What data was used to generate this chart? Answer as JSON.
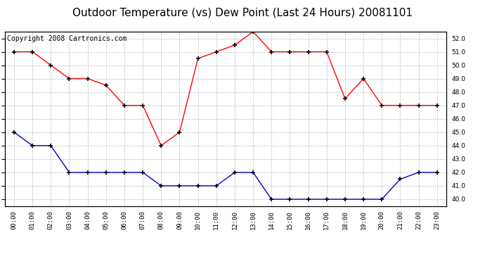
{
  "title": "Outdoor Temperature (vs) Dew Point (Last 24 Hours) 20081101",
  "copyright_text": "Copyright 2008 Cartronics.com",
  "hours": [
    "00:00",
    "01:00",
    "02:00",
    "03:00",
    "04:00",
    "05:00",
    "06:00",
    "07:00",
    "08:00",
    "09:00",
    "10:00",
    "11:00",
    "12:00",
    "13:00",
    "14:00",
    "15:00",
    "16:00",
    "17:00",
    "18:00",
    "19:00",
    "20:00",
    "21:00",
    "22:00",
    "23:00"
  ],
  "red_data": [
    51.0,
    51.0,
    50.0,
    49.0,
    49.0,
    48.5,
    47.0,
    47.0,
    44.0,
    45.0,
    50.5,
    51.0,
    51.5,
    52.5,
    51.0,
    51.0,
    51.0,
    51.0,
    47.5,
    49.0,
    47.0,
    47.0,
    47.0,
    47.0
  ],
  "blue_data": [
    45.0,
    44.0,
    44.0,
    42.0,
    42.0,
    42.0,
    42.0,
    42.0,
    41.0,
    41.0,
    41.0,
    41.0,
    42.0,
    42.0,
    40.0,
    40.0,
    40.0,
    40.0,
    40.0,
    40.0,
    40.0,
    41.5,
    42.0,
    42.0
  ],
  "red_color": "#ff0000",
  "blue_color": "#0000cc",
  "background_color": "#ffffff",
  "plot_bg_color": "#ffffff",
  "grid_color": "#bbbbbb",
  "ymin": 39.5,
  "ymax": 52.5,
  "yticks": [
    40.0,
    41.0,
    42.0,
    43.0,
    44.0,
    45.0,
    46.0,
    47.0,
    48.0,
    49.0,
    50.0,
    51.0,
    52.0
  ],
  "title_fontsize": 11,
  "copyright_fontsize": 7
}
